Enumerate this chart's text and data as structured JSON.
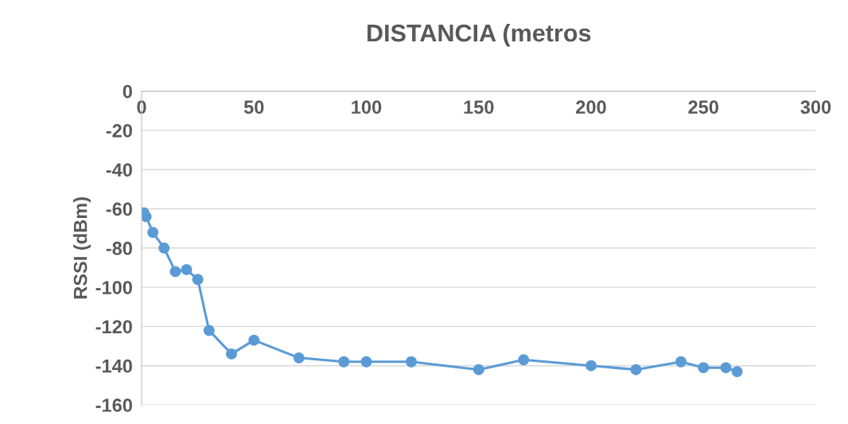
{
  "chart_data": {
    "type": "line",
    "title": "DISTANCIA (metros",
    "ylabel": "RSSI (dBm)",
    "x": [
      1,
      2,
      5,
      10,
      15,
      20,
      25,
      30,
      40,
      50,
      70,
      90,
      100,
      120,
      150,
      170,
      200,
      220,
      240,
      250,
      260,
      265
    ],
    "series": [
      {
        "color": "#5b9bd5",
        "values": [
          -62,
          -64,
          -72,
          -80,
          -92,
          -91,
          -96,
          -122,
          -134,
          -127,
          -136,
          -138,
          -138,
          -138,
          -142,
          -137,
          -140,
          -142,
          -138,
          -141,
          -141,
          -143
        ]
      }
    ],
    "xlim": [
      0,
      300
    ],
    "xticks": [
      0,
      50,
      100,
      150,
      200,
      250,
      300
    ],
    "ylim": [
      -160,
      0
    ],
    "yticks": [
      -160,
      -140,
      -120,
      -100,
      -80,
      -60,
      -40,
      -20,
      0
    ],
    "grid": "y",
    "marker": "circle",
    "line_style": "solid"
  }
}
